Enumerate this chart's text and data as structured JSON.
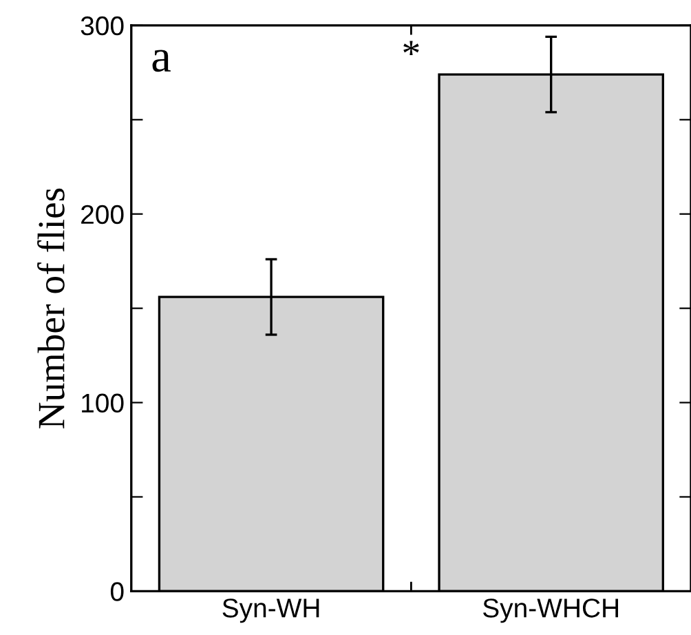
{
  "chart_data": {
    "type": "bar",
    "ylabel": "Number of flies",
    "categories": [
      "Syn-WH",
      "Syn-WHCH"
    ],
    "values": [
      156,
      274
    ],
    "errors": [
      20,
      20
    ],
    "color": "#d3d3d3",
    "ylim": [
      0,
      300
    ],
    "yticks": [
      0,
      {
        "value": 50,
        "label": null
      },
      100,
      {
        "value": 150,
        "label": null
      },
      200,
      {
        "value": 250,
        "label": null
      },
      300
    ],
    "annotations": [
      "a",
      "*"
    ],
    "grid": false
  }
}
